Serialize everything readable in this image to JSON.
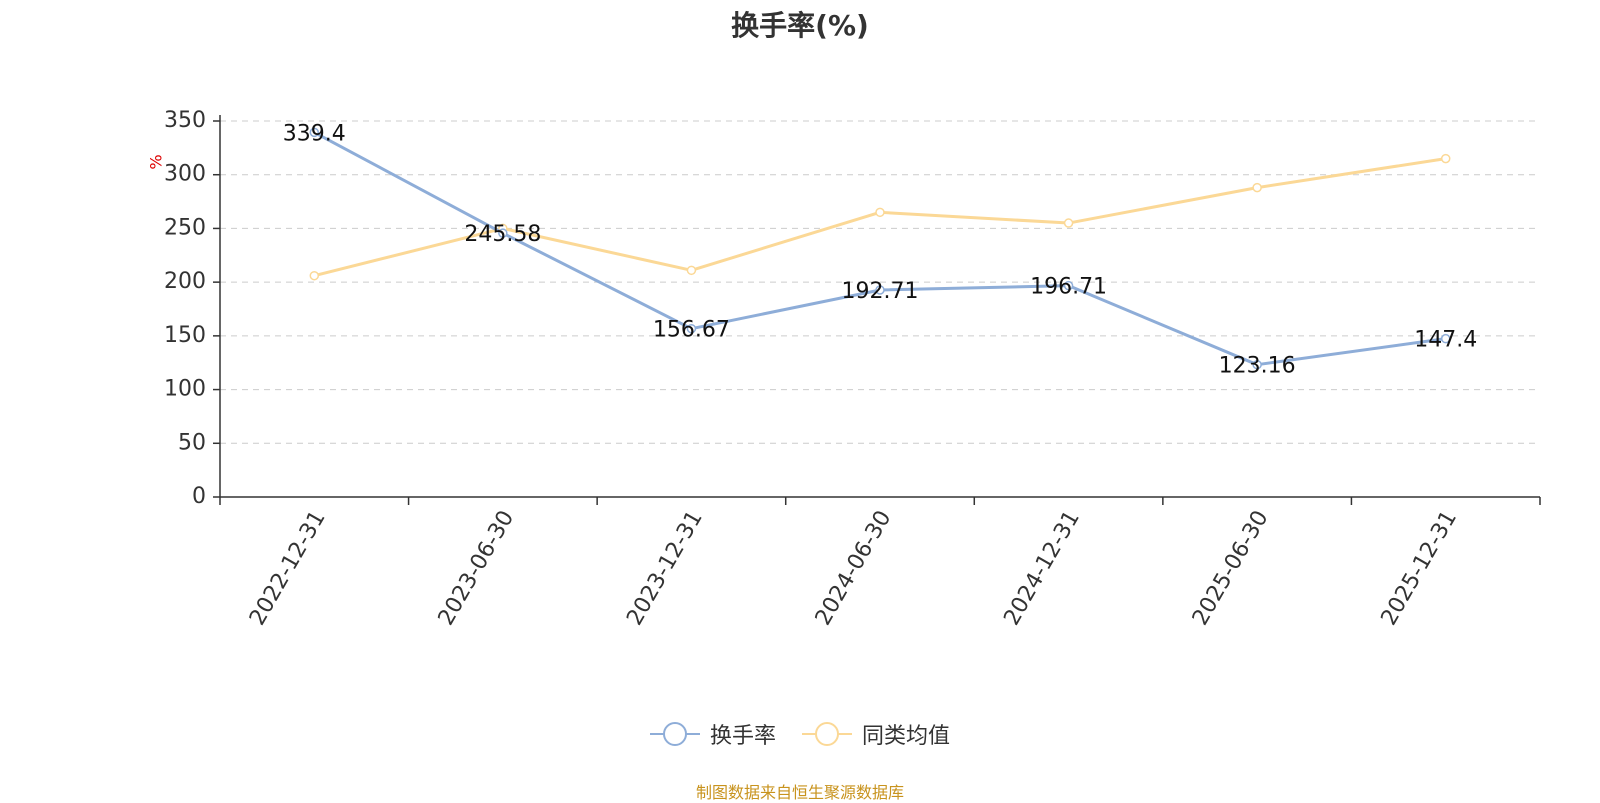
{
  "chart_data": {
    "type": "line",
    "title": "换手率(%)",
    "ylabel": "%",
    "xlabel": "",
    "ylim": [
      0,
      350
    ],
    "yticks": [
      0,
      50,
      100,
      150,
      200,
      250,
      300,
      350
    ],
    "categories": [
      "2022-12-31",
      "2023-06-30",
      "2023-12-31",
      "2024-06-30",
      "2024-12-31",
      "2025-06-30",
      "2025-12-31"
    ],
    "series": [
      {
        "name": "换手率",
        "color": "#8eadd8",
        "values": [
          339.4,
          245.58,
          156.67,
          192.71,
          196.71,
          123.16,
          147.4
        ],
        "labels": [
          "339.4",
          "245.58",
          "156.67",
          "192.71",
          "196.71",
          "123.16",
          "147.4"
        ]
      },
      {
        "name": "同类均值",
        "color": "#fbd896",
        "values": [
          206,
          250,
          211,
          265,
          255,
          288,
          315
        ]
      }
    ],
    "grid": true,
    "legend": "bottom-center"
  },
  "footer": {
    "source": "制图数据来自恒生聚源数据库"
  }
}
